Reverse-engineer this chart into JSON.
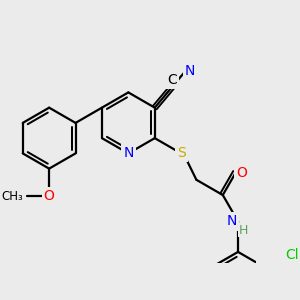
{
  "bg_color": "#ebebeb",
  "bond_color": "#000000",
  "bond_width": 1.6,
  "atom_colors": {
    "N": "#0000ff",
    "O": "#ff0000",
    "S": "#ccaa00",
    "Cl": "#00cc00",
    "C": "#000000",
    "H": "#5f9f5f"
  },
  "font_size": 10,
  "dbo": 0.032
}
